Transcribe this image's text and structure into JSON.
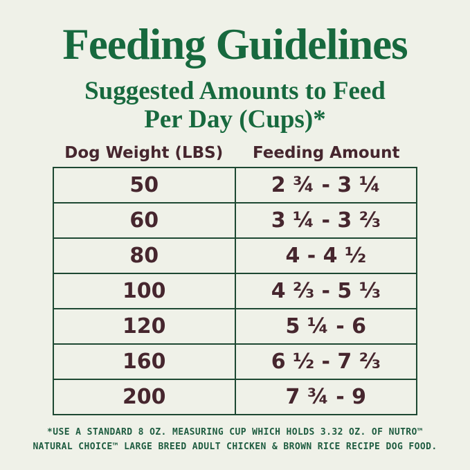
{
  "page": {
    "title": "Feeding Guidelines",
    "subtitle_line1": "Suggested Amounts to Feed",
    "subtitle_line2": "Per Day (Cups)*"
  },
  "table": {
    "headers": {
      "weight": "Dog Weight (LBS)",
      "amount": "Feeding Amount"
    },
    "rows": [
      {
        "weight": "50",
        "amount": "2 ¾ - 3 ¼"
      },
      {
        "weight": "60",
        "amount": "3 ¼ - 3 ⅔"
      },
      {
        "weight": "80",
        "amount": "4 - 4 ½"
      },
      {
        "weight": "100",
        "amount": "4 ⅔ - 5 ⅓"
      },
      {
        "weight": "120",
        "amount": "5 ¼ - 6"
      },
      {
        "weight": "160",
        "amount": "6 ½ - 7 ⅔"
      },
      {
        "weight": "200",
        "amount": "7 ¾ - 9"
      }
    ]
  },
  "footnote": {
    "line1": "*USE A STANDARD 8 OZ. MEASURING CUP WHICH HOLDS 3.32 OZ. OF NUTRO™",
    "line2": "NATURAL CHOICE™ LARGE BREED ADULT CHICKEN & BROWN RICE RECIPE DOG FOOD."
  },
  "colors": {
    "background": "#eff1e8",
    "heading_green": "#17693e",
    "border_green": "#1d4832",
    "text_brown": "#46262e",
    "footnote_green": "#1e5c40"
  },
  "chart_data": {
    "type": "table",
    "title": "Feeding Guidelines",
    "subtitle": "Suggested Amounts to Feed Per Day (Cups)*",
    "columns": [
      "Dog Weight (LBS)",
      "Feeding Amount"
    ],
    "rows": [
      [
        "50",
        "2 ¾ - 3 ¼"
      ],
      [
        "60",
        "3 ¼ - 3 ⅔"
      ],
      [
        "80",
        "4 - 4 ½"
      ],
      [
        "100",
        "4 ⅔ - 5 ⅓"
      ],
      [
        "120",
        "5 ¼ - 6"
      ],
      [
        "160",
        "6 ½ - 7 ⅔"
      ],
      [
        "200",
        "7 ¾ - 9"
      ]
    ],
    "feeding_range_cups_numeric": [
      {
        "weight_lbs": 50,
        "min_cups": 2.75,
        "max_cups": 3.25
      },
      {
        "weight_lbs": 60,
        "min_cups": 3.25,
        "max_cups": 3.667
      },
      {
        "weight_lbs": 80,
        "min_cups": 4,
        "max_cups": 4.5
      },
      {
        "weight_lbs": 100,
        "min_cups": 4.667,
        "max_cups": 5.333
      },
      {
        "weight_lbs": 120,
        "min_cups": 5.25,
        "max_cups": 6
      },
      {
        "weight_lbs": 160,
        "min_cups": 6.5,
        "max_cups": 7.667
      },
      {
        "weight_lbs": 200,
        "min_cups": 7.75,
        "max_cups": 9
      }
    ],
    "footnote": "*USE A STANDARD 8 OZ. MEASURING CUP WHICH HOLDS 3.32 OZ. OF NUTRO™ NATURAL CHOICE™ LARGE BREED ADULT CHICKEN & BROWN RICE RECIPE DOG FOOD."
  }
}
